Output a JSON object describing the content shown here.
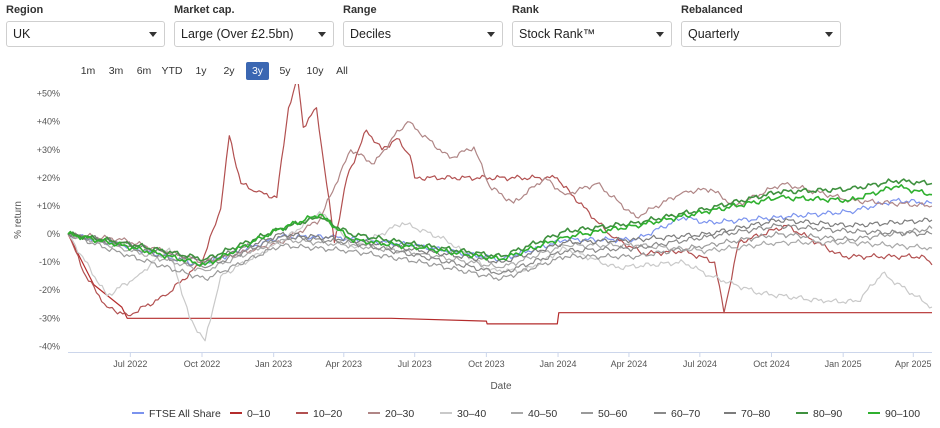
{
  "filters": [
    {
      "label": "Region",
      "value": "UK"
    },
    {
      "label": "Market cap.",
      "value": "Large (Over £2.5bn)"
    },
    {
      "label": "Range",
      "value": "Deciles"
    },
    {
      "label": "Rank",
      "value": "Stock Rank™"
    },
    {
      "label": "Rebalanced",
      "value": "Quarterly"
    }
  ],
  "ranges": [
    "1m",
    "3m",
    "6m",
    "YTD",
    "1y",
    "2y",
    "3y",
    "5y",
    "10y",
    "All"
  ],
  "active_range": "3y",
  "chart_data": {
    "type": "line",
    "xlabel": "Date",
    "ylabel": "% return",
    "x_ticks": [
      "Jul 2022",
      "Oct 2022",
      "Jan 2023",
      "Apr 2023",
      "Jul 2023",
      "Oct 2023",
      "Jan 2024",
      "Apr 2024",
      "Jul 2024",
      "Oct 2024",
      "Jan 2025",
      "Apr 2025"
    ],
    "x_range": [
      "2022-04-12",
      "2025-04-25"
    ],
    "y_ticks": [
      "+50%",
      "+40%",
      "+30%",
      "+20%",
      "+10%",
      "0%",
      "-10%",
      "-20%",
      "-30%",
      "-40%"
    ],
    "ylim": [
      -42,
      52
    ],
    "grid": "none",
    "legend_position": "bottom",
    "series": [
      {
        "name": "FTSE All Share",
        "color": "#7b93ee",
        "x": [
          "2022-04-12",
          "2022-06-20",
          "2022-09-28",
          "2023-01-10",
          "2023-03-15",
          "2023-06-30",
          "2023-10-20",
          "2024-01-10",
          "2024-04-10",
          "2024-06-10",
          "2024-07-10",
          "2024-10-10",
          "2025-01-10",
          "2025-03-10",
          "2025-04-25"
        ],
        "values": [
          0,
          -4,
          -11,
          -1,
          -1,
          -4,
          -9,
          -2,
          -2,
          6,
          4,
          6,
          8,
          12,
          11
        ]
      },
      {
        "name": "0-10",
        "color": "#b42c2c",
        "x": [
          "2022-04-12",
          "2022-05-15",
          "2022-06-20",
          "2022-06-27",
          "2022-08-01",
          "2023-06-01",
          "2023-10-01",
          "2023-10-02",
          "2023-12-31",
          "2024-01-02",
          "2024-07-01",
          "2025-04-25"
        ],
        "values": [
          0,
          -18,
          -26,
          -30,
          -30,
          -30,
          -31,
          -32,
          -32,
          -28,
          -28,
          -28
        ]
      },
      {
        "name": "10-20",
        "color": "#b25050",
        "x": [
          "2022-04-12",
          "2022-05-05",
          "2022-06-01",
          "2022-06-28",
          "2022-08-15",
          "2022-10-01",
          "2022-10-25",
          "2022-11-05",
          "2022-11-20",
          "2022-12-10",
          "2023-01-05",
          "2023-01-20",
          "2023-02-01",
          "2023-02-08",
          "2023-02-25",
          "2023-03-20",
          "2023-04-05",
          "2023-04-30",
          "2023-05-20",
          "2023-06-08",
          "2023-06-25",
          "2023-07-01",
          "2023-12-31",
          "2024-01-05",
          "2024-03-10",
          "2024-04-20",
          "2024-06-10",
          "2024-07-20",
          "2024-08-01",
          "2024-08-20",
          "2024-10-20",
          "2024-12-31",
          "2025-01-05",
          "2025-04-15",
          "2025-04-25"
        ],
        "values": [
          0,
          -15,
          -26,
          -29,
          -22,
          -10,
          9,
          35,
          18,
          15,
          13,
          45,
          55,
          38,
          45,
          -3,
          20,
          37,
          30,
          34,
          28,
          20,
          20,
          18,
          -1,
          -7,
          -6,
          -10,
          -28,
          -3,
          3,
          -8,
          -8,
          -8,
          -11
        ]
      },
      {
        "name": "20-30",
        "color": "#b08686",
        "x": [
          "2022-04-12",
          "2022-06-20",
          "2022-10-05",
          "2023-01-10",
          "2023-03-01",
          "2023-04-10",
          "2023-05-10",
          "2023-06-05",
          "2023-06-22",
          "2023-08-15",
          "2023-09-15",
          "2023-10-05",
          "2023-11-05",
          "2023-12-15",
          "2024-01-10",
          "2024-02-20",
          "2024-04-10",
          "2024-06-10",
          "2024-07-15",
          "2024-08-15",
          "2024-10-15",
          "2025-01-10",
          "2025-04-25"
        ],
        "values": [
          0,
          -2,
          -10,
          -3,
          5,
          30,
          25,
          35,
          40,
          27,
          31,
          17,
          11,
          20,
          14,
          18,
          6,
          15,
          16,
          10,
          18,
          12,
          10
        ]
      },
      {
        "name": "30-40",
        "color": "#c9c9c9",
        "x": [
          "2022-04-12",
          "2022-06-01",
          "2022-07-10",
          "2022-08-20",
          "2022-09-15",
          "2022-10-05",
          "2022-10-25",
          "2023-01-15",
          "2023-03-01",
          "2023-04-15",
          "2023-06-15",
          "2023-08-10",
          "2023-10-05",
          "2023-11-20",
          "2024-01-10",
          "2024-03-15",
          "2024-06-10",
          "2024-07-15",
          "2024-09-15",
          "2024-12-10",
          "2025-01-20",
          "2025-02-20",
          "2025-04-25"
        ],
        "values": [
          0,
          -22,
          -15,
          -5,
          -30,
          -38,
          -15,
          -2,
          8,
          -5,
          4,
          -2,
          -13,
          -13,
          -5,
          -12,
          -10,
          -15,
          -21,
          -24,
          -24,
          -14,
          -26
        ]
      },
      {
        "name": "40-50",
        "color": "#a9a9a9",
        "x": [
          "2022-04-12",
          "2022-06-20",
          "2022-10-05",
          "2023-01-10",
          "2023-04-10",
          "2023-07-10",
          "2023-10-20",
          "2024-01-10",
          "2024-04-10",
          "2024-07-10",
          "2024-10-10",
          "2025-01-10",
          "2025-04-25"
        ],
        "values": [
          0,
          -5,
          -13,
          -2,
          -4,
          -7,
          -12,
          -4,
          -4,
          -6,
          -3,
          -3,
          -5
        ]
      },
      {
        "name": "50-60",
        "color": "#9a9a9a",
        "x": [
          "2022-04-12",
          "2022-06-20",
          "2022-10-05",
          "2023-01-10",
          "2023-04-10",
          "2023-07-10",
          "2023-10-20",
          "2024-01-10",
          "2024-04-10",
          "2024-07-10",
          "2024-10-10",
          "2025-01-10",
          "2025-04-25"
        ],
        "values": [
          0,
          -7,
          -16,
          -4,
          -6,
          -10,
          -16,
          -8,
          -8,
          -4,
          0,
          -2,
          2
        ]
      },
      {
        "name": "60-70",
        "color": "#8a8a8a",
        "x": [
          "2022-04-12",
          "2022-06-20",
          "2022-10-05",
          "2023-01-10",
          "2023-04-10",
          "2023-07-10",
          "2023-10-20",
          "2024-01-10",
          "2024-04-10",
          "2024-07-10",
          "2024-10-10",
          "2025-01-10",
          "2025-04-25"
        ],
        "values": [
          0,
          -4,
          -12,
          -1,
          -3,
          -8,
          -14,
          -6,
          -5,
          -1,
          3,
          1,
          0
        ]
      },
      {
        "name": "70-80",
        "color": "#7c7c7c",
        "x": [
          "2022-04-12",
          "2022-06-20",
          "2022-10-05",
          "2023-01-10",
          "2023-04-10",
          "2023-07-10",
          "2023-10-20",
          "2024-01-10",
          "2024-04-10",
          "2024-07-10",
          "2024-10-10",
          "2025-01-10",
          "2025-04-25"
        ],
        "values": [
          0,
          -3,
          -10,
          0,
          -2,
          -6,
          -10,
          -3,
          -2,
          0,
          5,
          3,
          5
        ]
      },
      {
        "name": "80-90",
        "color": "#3f913f",
        "x": [
          "2022-04-12",
          "2022-06-20",
          "2022-10-05",
          "2023-01-10",
          "2023-03-01",
          "2023-04-10",
          "2023-07-10",
          "2023-10-20",
          "2024-01-10",
          "2024-04-10",
          "2024-07-10",
          "2024-10-10",
          "2025-01-10",
          "2025-03-10",
          "2025-04-25"
        ],
        "values": [
          0,
          -3,
          -9,
          2,
          6,
          0,
          -4,
          -8,
          1,
          4,
          9,
          15,
          16,
          19,
          18
        ]
      },
      {
        "name": "90-100",
        "color": "#2fb02f",
        "x": [
          "2022-04-12",
          "2022-06-20",
          "2022-10-05",
          "2023-01-10",
          "2023-03-01",
          "2023-04-10",
          "2023-07-10",
          "2023-10-20",
          "2024-01-10",
          "2024-04-10",
          "2024-07-10",
          "2024-10-10",
          "2025-01-10",
          "2025-03-10",
          "2025-04-25"
        ],
        "values": [
          0,
          -4,
          -11,
          2,
          7,
          -2,
          -5,
          -9,
          -1,
          3,
          8,
          13,
          12,
          17,
          14
        ]
      }
    ]
  }
}
